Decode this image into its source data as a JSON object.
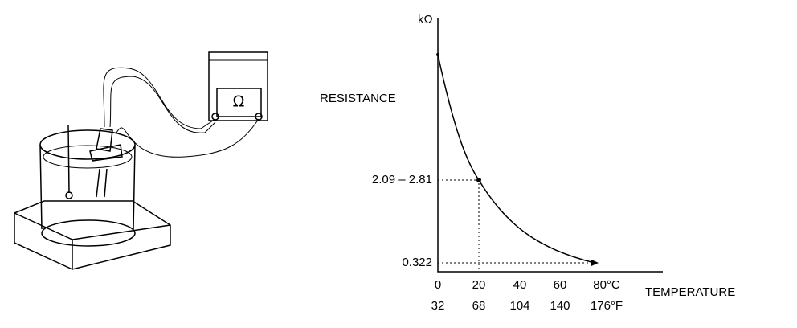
{
  "meter": {
    "symbol": "Ω"
  },
  "graph": {
    "y_unit": "kΩ",
    "y_title": "RESISTANCE",
    "y_labels": [
      "2.09 – 2.81",
      "0.322"
    ],
    "x_labels_c": [
      "0",
      "20",
      "40",
      "60",
      "80°C"
    ],
    "x_labels_f": [
      "32",
      "68",
      "104",
      "140",
      "176°F"
    ],
    "x_title": "TEMPERATURE"
  }
}
